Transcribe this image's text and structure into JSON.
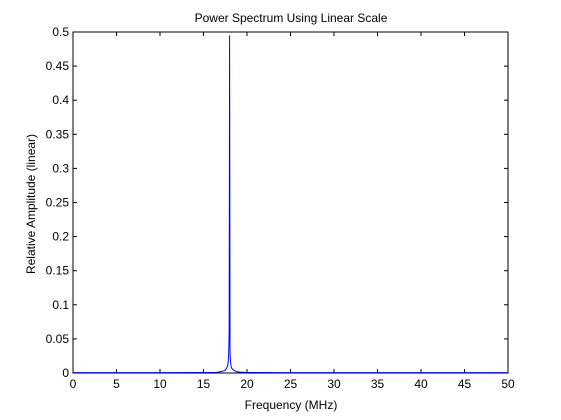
{
  "chart_data": {
    "type": "line",
    "title": "Power Spectrum Using Linear Scale",
    "xlabel": "Frequency (MHz)",
    "ylabel": "Relative Amplitude (linear)",
    "xlim": [
      0,
      50
    ],
    "ylim": [
      0,
      0.5
    ],
    "xticks": [
      0,
      5,
      10,
      15,
      20,
      25,
      30,
      35,
      40,
      45,
      50
    ],
    "xtick_labels": [
      "0",
      "5",
      "10",
      "15",
      "20",
      "25",
      "30",
      "35",
      "40",
      "45",
      "50"
    ],
    "yticks": [
      0,
      0.05,
      0.1,
      0.15,
      0.2,
      0.25,
      0.3,
      0.35,
      0.4,
      0.45,
      0.5
    ],
    "ytick_labels": [
      "0",
      "0.05",
      "0.1",
      "0.15",
      "0.2",
      "0.25",
      "0.3",
      "0.35",
      "0.4",
      "0.45",
      "0.5"
    ],
    "grid": false,
    "series_color": "#0000ff",
    "series": [
      {
        "x": [
          0,
          5,
          10,
          15,
          16.5,
          17.0,
          17.3,
          17.5,
          17.6,
          17.7,
          17.8,
          17.85,
          17.9,
          17.95,
          18.0,
          18.05,
          18.1,
          18.15,
          18.2,
          18.3,
          18.5,
          18.8,
          19.2,
          20,
          25,
          30,
          35,
          40,
          45,
          50
        ],
        "y": [
          0.0005,
          0.0005,
          0.0006,
          0.0008,
          0.001,
          0.002,
          0.003,
          0.004,
          0.006,
          0.008,
          0.012,
          0.018,
          0.03,
          0.06,
          0.495,
          0.03,
          0.018,
          0.012,
          0.008,
          0.006,
          0.004,
          0.002,
          0.0012,
          0.0008,
          0.0005,
          0.0005,
          0.0005,
          0.0005,
          0.0005,
          0.0005
        ]
      }
    ]
  }
}
